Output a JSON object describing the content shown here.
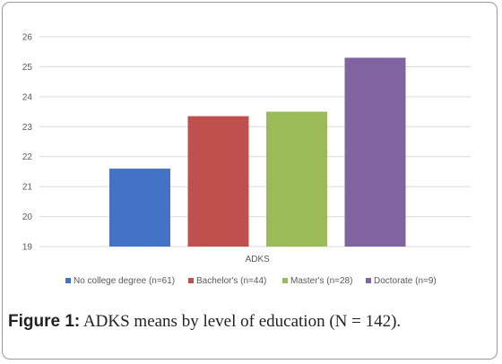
{
  "chart_data": {
    "type": "bar",
    "categories": [
      "ADKS"
    ],
    "xlabel": "",
    "ylabel": "",
    "ylim": [
      19,
      26
    ],
    "yticks": [
      19,
      20,
      21,
      22,
      23,
      24,
      25,
      26
    ],
    "grid": true,
    "legend_position": "bottom",
    "series": [
      {
        "name": "No college degree (n=61)",
        "values": [
          21.6
        ],
        "color": "#4472c4"
      },
      {
        "name": "Bachelor's (n=44)",
        "values": [
          23.35
        ],
        "color": "#c0504d"
      },
      {
        "name": "Master's (n=28)",
        "values": [
          23.5
        ],
        "color": "#9bbb59"
      },
      {
        "name": "Doctorate (n=9)",
        "values": [
          25.3
        ],
        "color": "#8064a2"
      }
    ]
  },
  "caption": {
    "label": "Figure 1:",
    "text": " ADKS means by level of education (N = 142)."
  }
}
